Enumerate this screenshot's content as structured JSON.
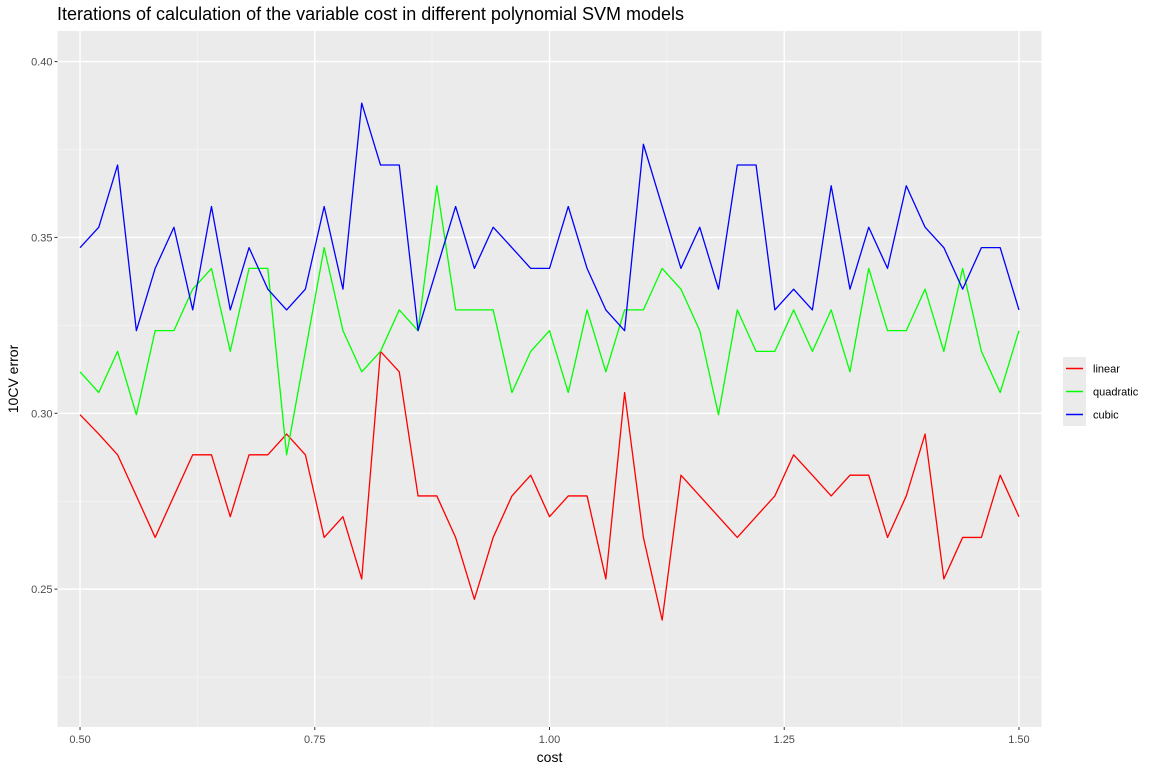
{
  "chart_data": {
    "type": "line",
    "title": "Iterations of calculation of the variable cost in different polynomial SVM models",
    "xlabel": "cost",
    "ylabel": "10CV error",
    "xlim": [
      0.476,
      1.524
    ],
    "ylim": [
      0.2108,
      0.4087
    ],
    "x_ticks": [
      0.5,
      0.75,
      1.0,
      1.25,
      1.5
    ],
    "x_tick_labels": [
      "0.50",
      "0.75",
      "1.00",
      "1.25",
      "1.50"
    ],
    "y_ticks": [
      0.25,
      0.3,
      0.35,
      0.4
    ],
    "y_tick_labels": [
      "0.25",
      "0.30",
      "0.35",
      "0.40"
    ],
    "grid": true,
    "panel_background": "#ebebeb",
    "legend_position": "right",
    "x": [
      0.5,
      0.52,
      0.54,
      0.56,
      0.58,
      0.6,
      0.62,
      0.64,
      0.66,
      0.68,
      0.7,
      0.72,
      0.74,
      0.76,
      0.78,
      0.8,
      0.82,
      0.84,
      0.86,
      0.88,
      0.9,
      0.92,
      0.94,
      0.96,
      0.98,
      1.0,
      1.02,
      1.04,
      1.06,
      1.08,
      1.1,
      1.12,
      1.14,
      1.16,
      1.18,
      1.2,
      1.22,
      1.24,
      1.26,
      1.28,
      1.3,
      1.32,
      1.34,
      1.36,
      1.38,
      1.4,
      1.42,
      1.44,
      1.46,
      1.48,
      1.5
    ],
    "series": [
      {
        "name": "linear",
        "color": "#ff0000",
        "values": [
          0.2996,
          0.2941,
          0.2882,
          0.2765,
          0.2647,
          0.2765,
          0.2882,
          0.2882,
          0.2706,
          0.2882,
          0.2882,
          0.2941,
          0.2882,
          0.2647,
          0.2706,
          0.2529,
          0.3176,
          0.3118,
          0.2765,
          0.2765,
          0.2647,
          0.2471,
          0.2647,
          0.2765,
          0.2824,
          0.2706,
          0.2765,
          0.2765,
          0.2529,
          0.3059,
          0.2647,
          0.2412,
          0.2824,
          0.2765,
          0.2706,
          0.2647,
          0.2706,
          0.2765,
          0.2882,
          0.2824,
          0.2765,
          0.2824,
          0.2824,
          0.2647,
          0.2765,
          0.2941,
          0.2529,
          0.2647,
          0.2647,
          0.2824,
          0.2706
        ]
      },
      {
        "name": "quadratic",
        "color": "#00ff00",
        "values": [
          0.3118,
          0.3059,
          0.3176,
          0.2996,
          0.3235,
          0.3235,
          0.3353,
          0.3412,
          0.3176,
          0.3412,
          0.3412,
          0.2882,
          0.3176,
          0.3471,
          0.3235,
          0.3118,
          0.3176,
          0.3294,
          0.3235,
          0.3647,
          0.3294,
          0.3294,
          0.3294,
          0.3059,
          0.3176,
          0.3235,
          0.3059,
          0.3294,
          0.3118,
          0.3294,
          0.3294,
          0.3412,
          0.3353,
          0.3235,
          0.2996,
          0.3294,
          0.3176,
          0.3176,
          0.3294,
          0.3176,
          0.3294,
          0.3118,
          0.3412,
          0.3235,
          0.3235,
          0.3353,
          0.3176,
          0.3412,
          0.3176,
          0.3059,
          0.3235
        ]
      },
      {
        "name": "cubic",
        "color": "#0000ff",
        "values": [
          0.3471,
          0.3529,
          0.3706,
          0.3235,
          0.3412,
          0.3529,
          0.3294,
          0.3588,
          0.3294,
          0.3471,
          0.3353,
          0.3294,
          0.3353,
          0.3588,
          0.3353,
          0.3882,
          0.3706,
          0.3706,
          0.3235,
          0.3412,
          0.3588,
          0.3412,
          0.3529,
          0.3471,
          0.3412,
          0.3412,
          0.3588,
          0.3412,
          0.3294,
          0.3235,
          0.3765,
          0.3588,
          0.3412,
          0.3529,
          0.3353,
          0.3706,
          0.3706,
          0.3294,
          0.3353,
          0.3294,
          0.3647,
          0.3353,
          0.3529,
          0.3412,
          0.3647,
          0.3529,
          0.3471,
          0.3353,
          0.3471,
          0.3471,
          0.3294
        ]
      }
    ]
  }
}
